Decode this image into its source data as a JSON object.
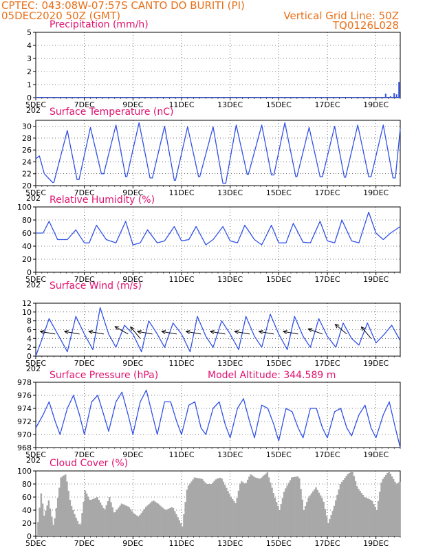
{
  "header": {
    "left_line1": "CPTEC:   043:08W-07:57S   CANTO DO BURITI (PI)",
    "left_line2": "05DEC2020 50Z (GMT)",
    "right_line1": "Vertical Grid Line: 50Z",
    "right_line2": "TQ0126L028"
  },
  "x_axis": {
    "tick_labels": [
      "5DEC",
      "7DEC",
      "9DEC",
      "11DEC",
      "13DEC",
      "15DEC",
      "17DEC",
      "19DEC"
    ],
    "tick_days": [
      0,
      2,
      4,
      6,
      8,
      10,
      12,
      14
    ],
    "year_fragment": "202",
    "range_days": [
      0,
      15
    ]
  },
  "colors": {
    "line": "#3050e8",
    "bar": "#a8a8a8",
    "title": "#e0106e",
    "header": "#e8701a",
    "arrow": "#000000",
    "grid": "#000000"
  },
  "chart_data": [
    {
      "id": "precip",
      "type": "bar",
      "title": "Precipitation (mm/h)",
      "ylim": [
        0,
        5
      ],
      "yticks": [
        0,
        1,
        2,
        3,
        4,
        5
      ],
      "x": [
        0,
        14.4,
        14.5,
        14.6,
        14.75,
        14.85,
        14.95
      ],
      "values": [
        0,
        0.3,
        0.05,
        0.1,
        0.35,
        0.25,
        1.2
      ]
    },
    {
      "id": "temp",
      "type": "line",
      "title": "Surface Temperature (nC)",
      "ylim": [
        20,
        31
      ],
      "yticks": [
        20,
        22,
        24,
        26,
        28,
        30
      ],
      "x": [
        0,
        0.15,
        0.35,
        0.7,
        0.75,
        1.3,
        1.7,
        1.78,
        2.25,
        2.7,
        2.8,
        3.3,
        3.7,
        3.75,
        4.25,
        4.7,
        4.8,
        5.3,
        5.7,
        5.75,
        6.25,
        6.7,
        6.75,
        7.3,
        7.7,
        7.82,
        8.25,
        8.7,
        8.75,
        9.3,
        9.7,
        9.8,
        10.25,
        10.7,
        10.75,
        11.25,
        11.7,
        11.8,
        12.3,
        12.7,
        12.75,
        13.25,
        13.7,
        13.8,
        14.3,
        14.7,
        14.8,
        15.0
      ],
      "values": [
        24.5,
        25.0,
        22.0,
        20.5,
        20.6,
        29.3,
        21.0,
        21.0,
        29.8,
        22.0,
        22.0,
        30.2,
        21.5,
        21.5,
        30.6,
        21.3,
        21.3,
        30.0,
        20.9,
        20.9,
        29.9,
        21.5,
        21.5,
        29.9,
        20.4,
        20.4,
        30.2,
        21.9,
        21.9,
        30.2,
        21.8,
        21.8,
        30.6,
        21.5,
        21.5,
        29.8,
        21.5,
        21.5,
        30.0,
        21.4,
        21.4,
        30.2,
        21.5,
        21.5,
        30.2,
        21.3,
        21.3,
        29.6
      ]
    },
    {
      "id": "rh",
      "type": "line",
      "title": "Relative Humidity (%)",
      "ylim": [
        0,
        100
      ],
      "yticks": [
        0,
        20,
        40,
        60,
        80,
        100
      ],
      "x": [
        0,
        0.3,
        0.55,
        0.9,
        1.3,
        1.65,
        2.0,
        2.2,
        2.5,
        2.9,
        3.3,
        3.7,
        4.0,
        4.3,
        4.6,
        5.0,
        5.3,
        5.7,
        6.0,
        6.3,
        6.6,
        7.0,
        7.3,
        7.7,
        8.0,
        8.3,
        8.6,
        9.0,
        9.3,
        9.7,
        10.0,
        10.3,
        10.6,
        11.0,
        11.3,
        11.7,
        12.0,
        12.3,
        12.6,
        13.0,
        13.3,
        13.7,
        14.0,
        14.3,
        14.6,
        15.0
      ],
      "values": [
        60,
        60,
        78,
        50,
        50,
        65,
        45,
        45,
        72,
        50,
        45,
        78,
        42,
        45,
        65,
        45,
        48,
        70,
        48,
        50,
        70,
        42,
        50,
        70,
        48,
        45,
        72,
        50,
        42,
        72,
        45,
        45,
        75,
        46,
        45,
        78,
        48,
        45,
        80,
        48,
        45,
        92,
        60,
        50,
        60,
        70
      ]
    },
    {
      "id": "wind",
      "type": "line",
      "title": "Surface Wind (m/s)",
      "ylim": [
        0,
        12
      ],
      "yticks": [
        0,
        2,
        4,
        6,
        8,
        10,
        12
      ],
      "x": [
        0,
        0.3,
        0.55,
        0.95,
        1.3,
        1.65,
        2.0,
        2.35,
        2.65,
        3.0,
        3.3,
        3.65,
        4.0,
        4.35,
        4.65,
        5.0,
        5.3,
        5.65,
        6.0,
        6.35,
        6.65,
        7.0,
        7.3,
        7.65,
        8.0,
        8.35,
        8.65,
        9.0,
        9.3,
        9.65,
        10.0,
        10.35,
        10.65,
        11.0,
        11.3,
        11.65,
        12.0,
        12.35,
        12.65,
        13.0,
        13.3,
        13.65,
        14.0,
        14.35,
        14.65,
        15.0
      ],
      "values": [
        0,
        4.5,
        8.5,
        4.5,
        1.0,
        9.0,
        5.0,
        1.5,
        11.0,
        5.0,
        2.0,
        7.0,
        5.0,
        1.0,
        8.0,
        5.0,
        2.0,
        7.5,
        5.0,
        1.0,
        9.0,
        4.5,
        2.0,
        8.0,
        5.0,
        1.5,
        9.0,
        4.5,
        2.0,
        9.5,
        5.0,
        1.5,
        9.0,
        4.5,
        2.0,
        8.5,
        4.5,
        2.0,
        7.5,
        4.0,
        2.5,
        7.5,
        3.0,
        5.0,
        7.0,
        3.5
      ],
      "arrows": {
        "x": [
          0.8,
          1.8,
          2.8,
          3.8,
          4.3,
          4.8,
          5.8,
          6.8,
          7.8,
          8.8,
          9.8,
          10.8,
          11.8,
          12.8,
          13.8
        ],
        "speed": [
          5,
          5,
          5,
          5,
          4,
          5,
          5,
          5,
          5,
          5,
          5,
          5,
          5,
          5,
          4
        ],
        "dir_deg": [
          100,
          100,
          100,
          120,
          140,
          100,
          100,
          100,
          100,
          100,
          100,
          100,
          110,
          130,
          140
        ]
      }
    },
    {
      "id": "pres",
      "type": "line",
      "title": "Surface Pressure (hPa)",
      "annotation": "Model Altitude: 344.589 m",
      "ylim": [
        968,
        978
      ],
      "yticks": [
        968,
        970,
        972,
        974,
        976,
        978
      ],
      "x": [
        0,
        0.3,
        0.55,
        0.8,
        1.0,
        1.3,
        1.55,
        1.8,
        2.0,
        2.3,
        2.55,
        2.8,
        3.0,
        3.3,
        3.55,
        3.8,
        4.0,
        4.3,
        4.55,
        4.8,
        5.0,
        5.3,
        5.55,
        5.8,
        6.0,
        6.3,
        6.55,
        6.8,
        7.0,
        7.3,
        7.55,
        7.8,
        8.0,
        8.3,
        8.55,
        8.8,
        9.0,
        9.3,
        9.55,
        9.8,
        10.0,
        10.3,
        10.55,
        10.8,
        11.0,
        11.3,
        11.55,
        11.8,
        12.0,
        12.3,
        12.55,
        12.8,
        13.0,
        13.3,
        13.55,
        13.8,
        14.0,
        14.3,
        14.55,
        14.8,
        15.0
      ],
      "values": [
        971,
        973,
        975,
        972,
        970,
        974,
        976,
        973,
        970,
        975,
        976,
        973,
        970.5,
        975,
        976.5,
        973,
        970,
        975,
        976.8,
        973,
        970,
        975,
        975,
        972,
        970,
        974.5,
        975,
        971,
        970,
        974,
        975,
        971.5,
        969.5,
        974,
        975.5,
        972,
        969.5,
        974.5,
        974,
        971.5,
        969,
        974,
        973.5,
        971,
        969.5,
        974,
        974,
        971,
        969.5,
        973.5,
        974,
        971,
        969.8,
        973,
        974.5,
        971,
        969.5,
        973,
        975,
        971,
        968
      ]
    },
    {
      "id": "cloud",
      "type": "area",
      "title": "Cloud Cover (%)",
      "ylim": [
        0,
        100
      ],
      "yticks": [
        0,
        20,
        40,
        60,
        80,
        100
      ],
      "x": [
        0,
        0.2,
        0.3,
        0.5,
        0.7,
        0.9,
        1.0,
        1.2,
        1.4,
        1.6,
        1.8,
        2.0,
        2.2,
        2.5,
        2.8,
        3.0,
        3.2,
        3.5,
        3.8,
        4.0,
        4.2,
        4.5,
        4.8,
        5.0,
        5.3,
        5.6,
        6.0,
        6.2,
        6.5,
        6.8,
        7.0,
        7.2,
        7.4,
        7.6,
        7.8,
        8.0,
        8.2,
        8.4,
        8.6,
        8.8,
        9.0,
        9.2,
        9.5,
        9.8,
        10.0,
        10.2,
        10.5,
        10.8,
        11.0,
        11.2,
        11.5,
        11.8,
        12.0,
        12.2,
        12.5,
        12.8,
        13.0,
        13.2,
        13.5,
        13.8,
        14.0,
        14.2,
        14.5,
        14.8,
        15.0
      ],
      "values": [
        0,
        70,
        30,
        55,
        15,
        65,
        90,
        95,
        50,
        30,
        15,
        70,
        55,
        60,
        40,
        60,
        35,
        50,
        45,
        35,
        30,
        45,
        55,
        50,
        40,
        45,
        15,
        75,
        90,
        88,
        80,
        80,
        88,
        90,
        75,
        60,
        50,
        85,
        80,
        95,
        90,
        88,
        98,
        60,
        40,
        70,
        90,
        92,
        40,
        60,
        75,
        55,
        20,
        40,
        80,
        95,
        100,
        75,
        60,
        55,
        40,
        85,
        100,
        80,
        85
      ]
    }
  ]
}
